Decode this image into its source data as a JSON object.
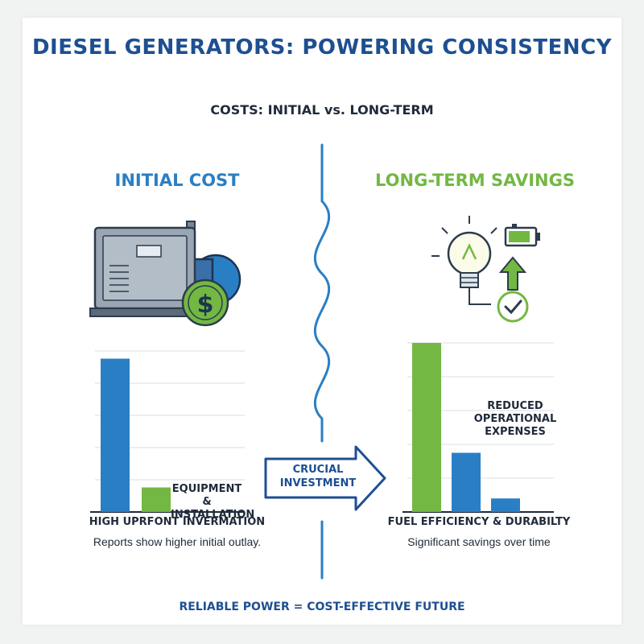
{
  "title": "DIESEL GENERATORS: POWERING CONSISTENCY",
  "subtitle": "COSTS: INITIAL vs. LONG-TERM",
  "left": {
    "heading": "INITIAL COST",
    "bar_label": "EQUIPMENT & INSTALLATION",
    "caption": "HIGH UPRFONT INVERMATION",
    "note": "Reports show higher initial outlay."
  },
  "right": {
    "heading": "LONG-TERM SAVINGS",
    "bar_label": "REDUCED OPERATIONAL EXPENSES",
    "caption": "FUEL EFFICIENCY & DURABILTY",
    "note": "Significant savings over time"
  },
  "arrow": {
    "label": "CRUCIAL INVESTMENT"
  },
  "footer": "RELIABLE POWER = COST-EFFECTIVE FUTURE",
  "colors": {
    "blue": "#2a7fc4",
    "green": "#72b843",
    "navy": "#1d4f91"
  },
  "icons": [
    "generator-icon",
    "dollar-coin-icon",
    "lightbulb-icon",
    "battery-icon",
    "up-arrow-icon",
    "checkmark-icon"
  ],
  "chart_data": [
    {
      "type": "bar",
      "categories": [
        "",
        ""
      ],
      "values": [
        100,
        16
      ],
      "series_colors": [
        "#2a7fc4",
        "#72b843"
      ],
      "ylim": [
        0,
        105
      ],
      "grid": true,
      "title": "",
      "xlabel": "",
      "ylabel": ""
    },
    {
      "type": "bar",
      "categories": [
        "",
        "",
        ""
      ],
      "values": [
        100,
        35,
        8
      ],
      "series_colors": [
        "#72b843",
        "#2a7fc4",
        "#2a7fc4"
      ],
      "ylim": [
        0,
        100
      ],
      "grid": true,
      "title": "",
      "xlabel": "",
      "ylabel": ""
    }
  ]
}
